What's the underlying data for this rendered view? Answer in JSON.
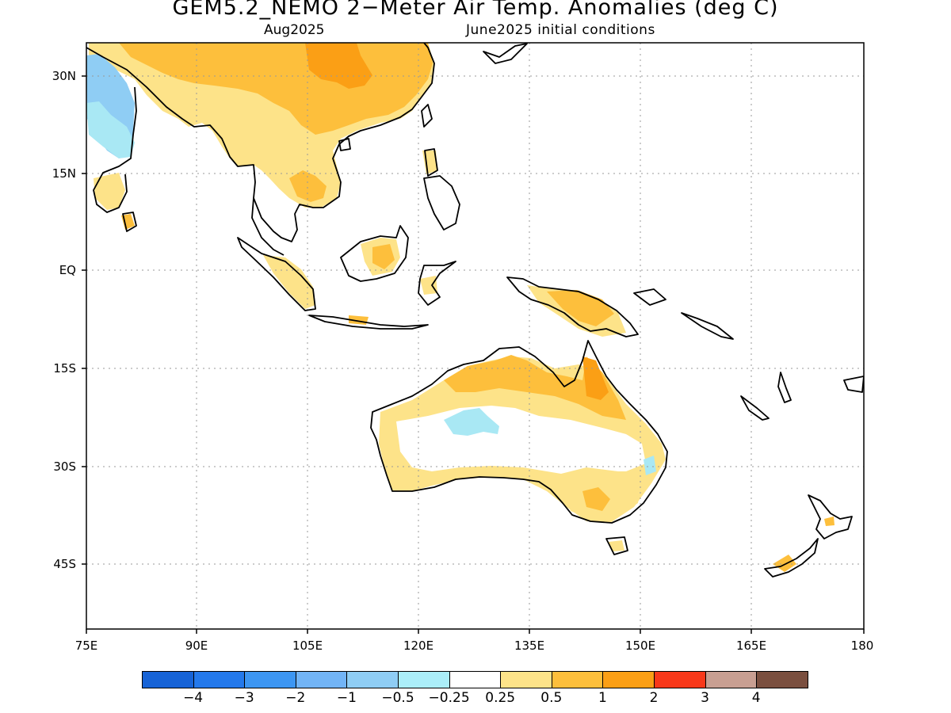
{
  "title": "GEM5.2_NEMO 2−Meter Air Temp. Anomalies (deg C)",
  "subtitle_month": "Aug2025",
  "subtitle_ic": "June2025 initial conditions",
  "map": {
    "lon_range": [
      75,
      180
    ],
    "lat_range": [
      -51,
      35
    ],
    "lon_ticks": [
      "75E",
      "90E",
      "105E",
      "120E",
      "135E",
      "150E",
      "165E",
      "180"
    ],
    "lat_ticks": [
      "30N",
      "15N",
      "EQ",
      "15S",
      "30S",
      "45S"
    ],
    "grid": "dotted",
    "colors": {
      "light_blue": "#a9e8f4",
      "mid_blue": "#8fcdf4",
      "pale_yellow": "#fde389",
      "yellow_orange": "#fdbf3c",
      "orange": "#fb9f15"
    }
  },
  "legend": {
    "colors": [
      "#1763d6",
      "#2479eb",
      "#3d96f2",
      "#72b4f6",
      "#8fcdf4",
      "#abeef9",
      "#ffffff",
      "#fde389",
      "#fdbf3c",
      "#fb9f15",
      "#f8381a",
      "#c89f92",
      "#7a4f3f"
    ],
    "labels": [
      "−4",
      "−3",
      "−2",
      "−1",
      "−0.5",
      "−0.25",
      "0.25",
      "0.5",
      "1",
      "2",
      "3",
      "4"
    ]
  }
}
